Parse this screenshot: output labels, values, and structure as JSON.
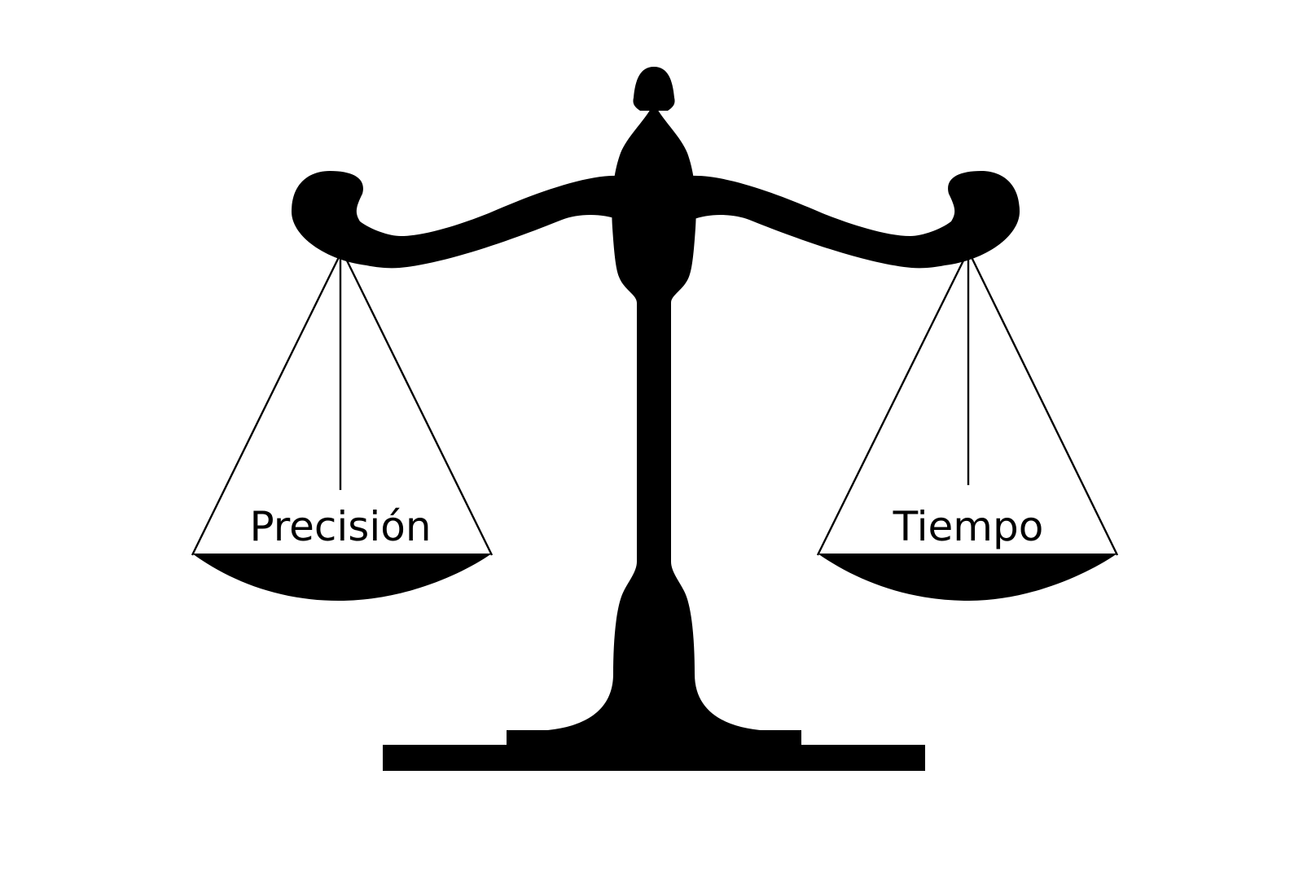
{
  "figure": {
    "left_pan_label": "Precisión",
    "right_pan_label": "Tiempo",
    "foreground_color": "#000000",
    "background_color": "#ffffff"
  }
}
